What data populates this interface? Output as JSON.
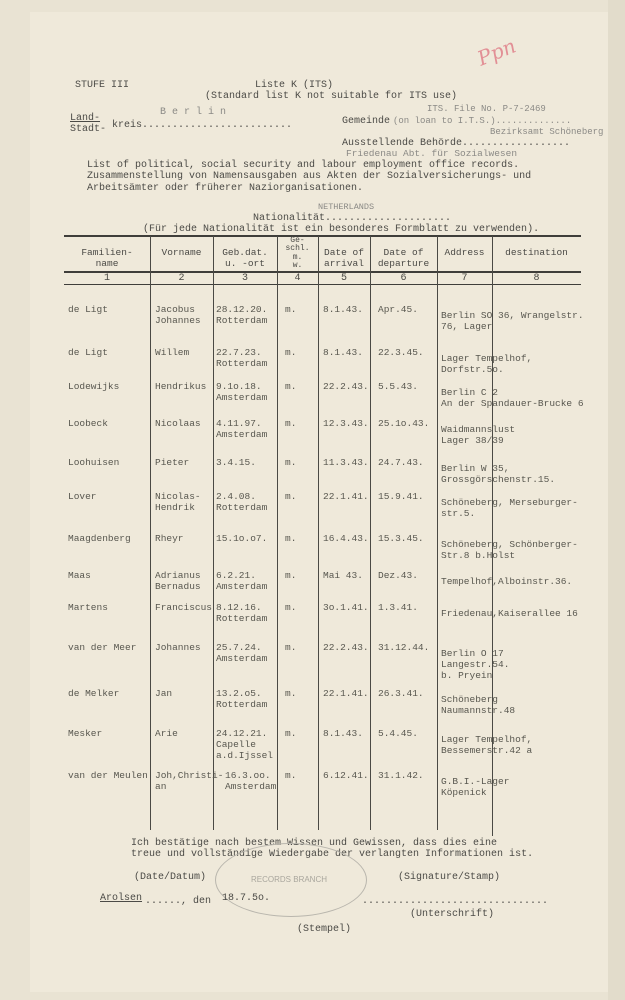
{
  "header": {
    "stufe": "STUFE III",
    "title": "Liste K (ITS)",
    "subtitle": "(Standard list K not suitable for ITS use)",
    "land_label": "Land-",
    "stadt_label": "Stadt-",
    "kreis_label": "kreis.........................",
    "kreis_value": "B e r l i n",
    "its_file_no": "ITS. File No. P-7-2469",
    "gemeinde_label": "Gemeinde",
    "gemeinde_value": "(on loan to I.T.S.)..............",
    "behoerde_label": "Ausstellende Behörde..................",
    "behoerde_value_1": "Bezirksamt Schöneberg",
    "behoerde_value_2": "Friedenau Abt. für Sozialwesen",
    "desc_en": "List of political, social security and labour employment office records.",
    "desc_de_1": "Zusammenstellung von Namensausgaben aus Akten der Sozialversicherungs- und",
    "desc_de_2": "Arbeitsämter oder früherer Naziorganisationen.",
    "nationality_label": "Nationalität.....................",
    "nationality_value": "NETHERLANDS",
    "nationality_note": "(Für jede Nationalität ist ein besonderes Formblatt zu verwenden).",
    "handwritten_mark": "Ppn"
  },
  "table": {
    "columns": [
      "Familien-\nname",
      "Vorname",
      "Geb.dat.\nu. -ort",
      "Ge-\nschl.\nm.\nw.",
      "Date of\narrival",
      "Date of\ndeparture",
      "Address",
      "destination"
    ],
    "column_numbers": [
      "1",
      "2",
      "3",
      "4",
      "5",
      "6",
      "7",
      "8"
    ],
    "rows": [
      [
        "de Ligt",
        "Jacobus\nJohannes",
        "28.12.20.\nRotterdam",
        "m.",
        "8.1.43.",
        "Apr.45.",
        "Berlin SO 36, Wrangelstr.\n76, Lager"
      ],
      [
        "de Ligt",
        "Willem",
        "22.7.23.\nRotterdam",
        "m.",
        "8.1.43.",
        "22.3.45.",
        "Lager Tempelhof,\nDorfstr.5o."
      ],
      [
        "Lodewijks",
        "Hendrikus",
        "9.1o.18.\nAmsterdam",
        "m.",
        "22.2.43.",
        "5.5.43.",
        "Berlin C 2\nAn der Spandauer-Brucke 6"
      ],
      [
        "Loobeck",
        "Nicolaas",
        "4.11.97.\nAmsterdam",
        "m.",
        "12.3.43.",
        "25.1o.43.",
        "Waidmannslust\nLager 38/39"
      ],
      [
        "Loohuisen",
        "Pieter",
        "3.4.15.",
        "m.",
        "11.3.43.",
        "24.7.43.",
        "Berlin W 35,\nGrossgörschenstr.15."
      ],
      [
        "Lover",
        "Nicolas-\nHendrik",
        "2.4.08.\nRotterdam",
        "m.",
        "22.1.41.",
        "15.9.41.",
        "Schöneberg, Merseburger-\nstr.5."
      ],
      [
        "Maagdenberg",
        "Rheyr",
        "15.1o.o7.",
        "m.",
        "16.4.43.",
        "15.3.45.",
        "Schöneberg, Schönberger-\nStr.8 b.Holst"
      ],
      [
        "Maas",
        "Adrianus\nBernadus",
        "6.2.21.\nAmsterdam",
        "m.",
        "Mai 43.",
        "Dez.43.",
        "Tempelhof,Alboinstr.36."
      ],
      [
        "Martens",
        "Franciscus",
        "8.12.16.\nRotterdam",
        "m.",
        "3o.1.41.",
        "1.3.41.",
        "Friedenau,Kaiserallee 16"
      ],
      [
        "van der Meer",
        "Johannes",
        "25.7.24.\nAmsterdam",
        "m.",
        "22.2.43.",
        "31.12.44.",
        "Berlin O 17\nLangestr.54.\nb. Pryein"
      ],
      [
        "de Melker",
        "Jan",
        "13.2.o5.\nRotterdam",
        "m.",
        "22.1.41.",
        "26.3.41.",
        "Schöneberg\nNaumannstr.48"
      ],
      [
        "Mesker",
        "Arie",
        "24.12.21.\nCapelle\na.d.Ijssel",
        "m.",
        "8.1.43.",
        "5.4.45.",
        "Lager Tempelhof,\nBessemerstr.42 a"
      ],
      [
        "van der Meulen",
        "Joh,Christi-\nan",
        "16.3.oo.\nAmsterdam",
        "m.",
        "6.12.41.",
        "31.1.42.",
        "G.B.I.-Lager\nKöpenick"
      ]
    ]
  },
  "footer": {
    "confirm_1": "Ich bestätige nach bestem Wissen und Gewissen, dass dies eine",
    "confirm_2": "treue und vollständige Wiedergabe der verlangten Informationen ist.",
    "date_label": "(Date/Datum)",
    "signature_label": "(Signature/Stamp)",
    "place": "Arolsen",
    "place_dots": "......, den",
    "date_value": "18.7.5o.",
    "sig_dots": "...............................",
    "unterschrift": "(Unterschrift)",
    "stempel": "(Stempel)",
    "stamp_text": "RECORDS BRANCH"
  }
}
